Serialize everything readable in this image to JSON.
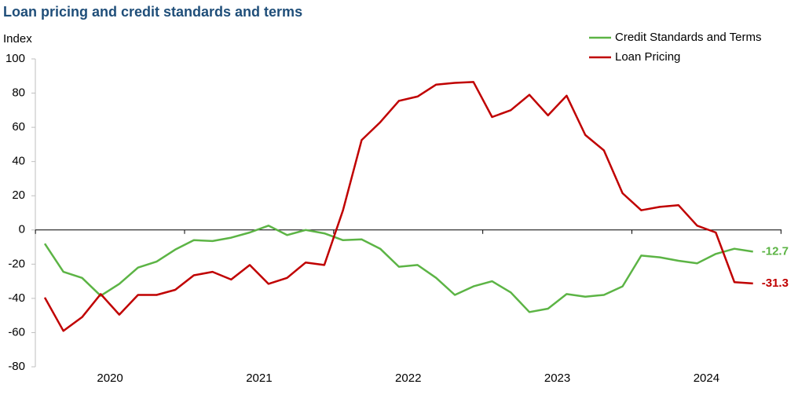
{
  "chart_data": {
    "type": "line",
    "title": "Loan pricing and credit standards and terms",
    "y_label": "Index",
    "categories": [
      null,
      null,
      null,
      null,
      "2020",
      null,
      null,
      null,
      null,
      null,
      null,
      null,
      "2021",
      null,
      null,
      null,
      null,
      null,
      null,
      null,
      "2022",
      null,
      null,
      null,
      null,
      null,
      null,
      null,
      "2023",
      null,
      null,
      null,
      null,
      null,
      null,
      null,
      "2024",
      null,
      null
    ],
    "series": [
      {
        "name": "Credit Standards and Terms",
        "color": "#5cb445",
        "values": [
          -8,
          -24.5,
          -28,
          -38.5,
          -31.5,
          -22,
          -18.5,
          -11.5,
          -6,
          -6.5,
          -4.5,
          -1.5,
          2.5,
          -3,
          0,
          -2,
          -6,
          -5.5,
          -11,
          -21.5,
          -20.5,
          -28,
          -38,
          -33,
          -30,
          -36.5,
          -48,
          -46,
          -37.5,
          -39,
          -38,
          -33,
          -15,
          -16,
          -18,
          -19.5,
          -14,
          -11,
          -12.7
        ],
        "value_labels": [
          null,
          null,
          null,
          null,
          null,
          null,
          null,
          null,
          null,
          null,
          null,
          null,
          null,
          null,
          null,
          null,
          null,
          null,
          null,
          null,
          null,
          null,
          null,
          null,
          null,
          null,
          null,
          null,
          null,
          null,
          null,
          null,
          null,
          null,
          null,
          null,
          null,
          null,
          "-12.7"
        ]
      },
      {
        "name": "Loan Pricing",
        "color": "#c00000",
        "values": [
          -39.5,
          -59,
          -51,
          -37.5,
          -49.5,
          -38,
          -38,
          -35,
          -26.5,
          -24.5,
          -29,
          -20.5,
          -31.5,
          -28,
          -19,
          -20.5,
          11.5,
          52.5,
          63,
          75.5,
          78,
          85,
          86,
          86.5,
          66,
          70,
          79,
          67,
          78.5,
          55.5,
          46.5,
          21.5,
          11.5,
          13.5,
          14.5,
          2.5,
          -1.5,
          -30.5,
          -31.3
        ],
        "value_labels": [
          null,
          null,
          null,
          null,
          null,
          null,
          null,
          null,
          null,
          null,
          null,
          null,
          null,
          null,
          null,
          null,
          null,
          null,
          null,
          null,
          null,
          null,
          null,
          null,
          null,
          null,
          null,
          null,
          null,
          null,
          null,
          null,
          null,
          null,
          null,
          null,
          null,
          null,
          "-31.3"
        ]
      }
    ],
    "ylim": [
      -80,
      100
    ],
    "yticks": [
      -80,
      -60,
      -40,
      -20,
      0,
      20,
      40,
      60,
      80,
      100
    ],
    "legend": "upper right"
  }
}
